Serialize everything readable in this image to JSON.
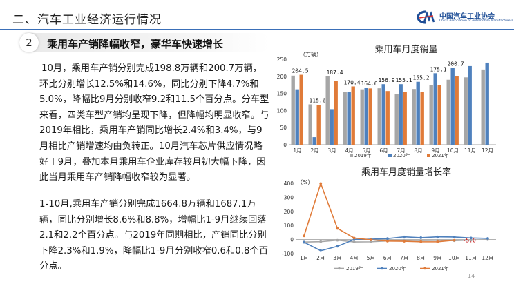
{
  "header": {
    "section_title": "二、汽车工业经济运行情况",
    "logo_cn": "中国汽车工业协会",
    "logo_en": "China Association of Automobile Manufacturers"
  },
  "subtitle": {
    "number": "2",
    "text": "乘用车产销降幅收窄，豪华车快速增长"
  },
  "paragraphs": [
    "10月，乘用车产销分别完成198.8万辆和200.7万辆，环比分别增长12.5%和14.6%，同比分别下降4.7%和5.0%，降幅比9月分别收窄9.2和11.5个百分点。分车型来看，四类车型产销均呈现下降，但降幅均明显收窄。与2019年相比，乘用车产销同比增长2.4%和3.4%，与9月相比产销增速均由负转正。10月汽车芯片供应情况略好于9月，叠加本月乘用车企业库存较月初大幅下降，因此当月乘用车产销降幅收窄较为显著。",
    "1-10月,乘用车产销分别完成1664.8万辆和1687.1万辆，同比分别增长8.6%和8.8%，增幅比1-9月继续回落2.1和2.2个百分点。与2019年同期相比，产销同比分别下降2.3%和1.9%，降幅比1-9月分别收窄0.6和0.8个百分点。"
  ],
  "page_number": "14",
  "chart_data": [
    {
      "type": "bar",
      "title": "乘用车月度销量",
      "ylabel": "（万辆）",
      "categories": [
        "1月",
        "2月",
        "3月",
        "4月",
        "5月",
        "6月",
        "7月",
        "8月",
        "9月",
        "10月",
        "11月",
        "12月"
      ],
      "ylim": [
        0,
        250
      ],
      "yticks": [
        0,
        50,
        100,
        150,
        200,
        250
      ],
      "grid": false,
      "legend": "bottom",
      "series": [
        {
          "name": "2019年",
          "color": "#a6a6a6",
          "values": [
            202,
            118,
            200,
            154,
            162,
            165,
            148,
            163,
            175,
            190,
            197,
            220
          ]
        },
        {
          "name": "2020年",
          "color": "#4f81bd",
          "values": [
            162,
            22,
            104,
            154,
            167,
            177,
            177,
            184,
            209,
            225,
            230,
            240
          ]
        },
        {
          "name": "2021年",
          "color": "#e07b39",
          "values": [
            204.5,
            115.6,
            187.4,
            170.4,
            164.6,
            156.9,
            155.1,
            155.2,
            175.1,
            200.7,
            null,
            null
          ]
        }
      ],
      "data_labels": [
        "204.5",
        "115.6",
        "187.4",
        "170.4",
        "164.6",
        "156.9",
        "155.1",
        "155.2",
        "175.1",
        "200.7"
      ]
    },
    {
      "type": "line",
      "title": "乘用车月度销量增长率",
      "ylabel": "（%）",
      "categories": [
        "1月",
        "2月",
        "3月",
        "4月",
        "5月",
        "6月",
        "7月",
        "8月",
        "9月",
        "10月",
        "11月",
        "12月"
      ],
      "ylim": [
        -100,
        400
      ],
      "yticks": [
        -100,
        0,
        100,
        200,
        300,
        400
      ],
      "grid": false,
      "legend": "bottom",
      "series": [
        {
          "name": "2019年",
          "color": "#a6a6a6",
          "values": [
            -17.7,
            -15,
            -5,
            -17,
            -16,
            -9.6,
            -5,
            -7,
            -6,
            -8,
            -4,
            -1
          ]
        },
        {
          "name": "2020年",
          "color": "#4f81bd",
          "values": [
            -19.5,
            -79,
            -48,
            0,
            3,
            7,
            19,
            13,
            19,
            18,
            11,
            8
          ]
        },
        {
          "name": "2021年",
          "color": "#e07b39",
          "values": [
            26,
            398,
            79,
            11,
            -2,
            -11,
            -12,
            -16,
            -16,
            -5.0,
            null,
            null
          ]
        }
      ],
      "data_labels": [
        "-5.0"
      ]
    }
  ]
}
